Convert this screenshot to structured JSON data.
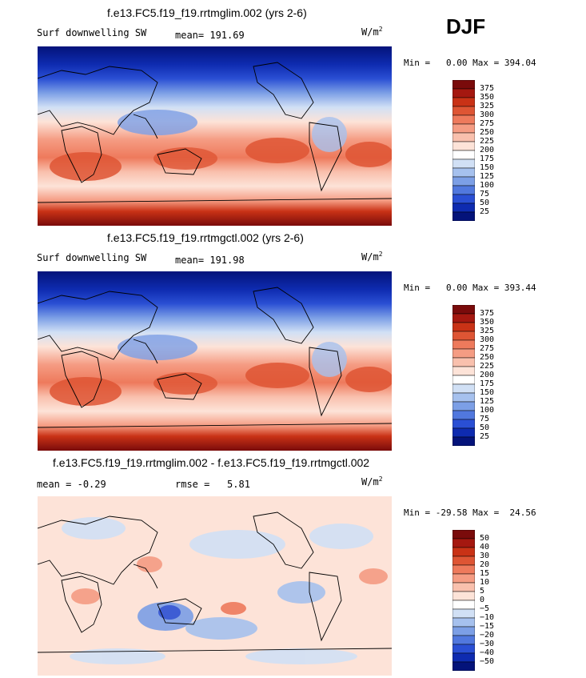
{
  "season": "DJF",
  "panels": [
    {
      "title": "f.e13.FC5.f19_f19.rrtmglim.002 (yrs 2-6)",
      "left_label": "Surf downwelling SW",
      "mean_label": "mean=",
      "mean_value": "191.69",
      "units_base": "W/m",
      "units_exp": "2",
      "min_label": "Min =",
      "min_value": "0.00",
      "max_label": "Max =",
      "max_value": "394.04",
      "colorbar": {
        "levels": [
          "375",
          "350",
          "325",
          "300",
          "275",
          "250",
          "225",
          "200",
          "175",
          "150",
          "125",
          "100",
          "75",
          "50",
          "25"
        ],
        "colors": [
          "#7a0b0b",
          "#a51810",
          "#c93216",
          "#de5534",
          "#ee7a5c",
          "#f59c83",
          "#f9c0ad",
          "#fde3d8",
          "#ffffff",
          "#d1e0f5",
          "#a6c1ee",
          "#7c9fe6",
          "#5178de",
          "#2a4fd4",
          "#0e2bb0",
          "#04137a"
        ]
      },
      "chart_data": {
        "type": "heatmap",
        "field": "surface downwelling shortwave",
        "range": [
          0,
          394.04
        ],
        "mean": 191.69
      }
    },
    {
      "title": "f.e13.FC5.f19_f19.rrtmgctl.002 (yrs 2-6)",
      "left_label": "Surf downwelling SW",
      "mean_label": "mean=",
      "mean_value": "191.98",
      "units_base": "W/m",
      "units_exp": "2",
      "min_label": "Min =",
      "min_value": "0.00",
      "max_label": "Max =",
      "max_value": "393.44",
      "colorbar": {
        "levels": [
          "375",
          "350",
          "325",
          "300",
          "275",
          "250",
          "225",
          "200",
          "175",
          "150",
          "125",
          "100",
          "75",
          "50",
          "25"
        ],
        "colors": [
          "#7a0b0b",
          "#a51810",
          "#c93216",
          "#de5534",
          "#ee7a5c",
          "#f59c83",
          "#f9c0ad",
          "#fde3d8",
          "#ffffff",
          "#d1e0f5",
          "#a6c1ee",
          "#7c9fe6",
          "#5178de",
          "#2a4fd4",
          "#0e2bb0",
          "#04137a"
        ]
      },
      "chart_data": {
        "type": "heatmap",
        "field": "surface downwelling shortwave",
        "range": [
          0,
          393.44
        ],
        "mean": 191.98
      }
    },
    {
      "title": "f.e13.FC5.f19_f19.rrtmglim.002 - f.e13.FC5.f19_f19.rrtmgctl.002",
      "left_label": "mean =",
      "mean_label": "",
      "mean_value": "-0.29",
      "rmse_label": "rmse =",
      "rmse_value": "5.81",
      "units_base": "W/m",
      "units_exp": "2",
      "min_label": "Min =",
      "min_value": "-29.58",
      "max_label": "Max =",
      "max_value": "24.56",
      "colorbar": {
        "levels": [
          "50",
          "40",
          "30",
          "20",
          "15",
          "10",
          "5",
          "0",
          "−5",
          "−10",
          "−15",
          "−20",
          "−30",
          "−40",
          "−50"
        ],
        "colors": [
          "#7a0b0b",
          "#a51810",
          "#c93216",
          "#de5534",
          "#ee7a5c",
          "#f59c83",
          "#f9c0ad",
          "#fde3d8",
          "#ffffff",
          "#d1e0f5",
          "#a6c1ee",
          "#7c9fe6",
          "#5178de",
          "#2a4fd4",
          "#0e2bb0",
          "#04137a"
        ]
      },
      "chart_data": {
        "type": "heatmap",
        "field": "difference",
        "range": [
          -29.58,
          24.56
        ],
        "mean": -0.29,
        "rmse": 5.81
      }
    }
  ]
}
